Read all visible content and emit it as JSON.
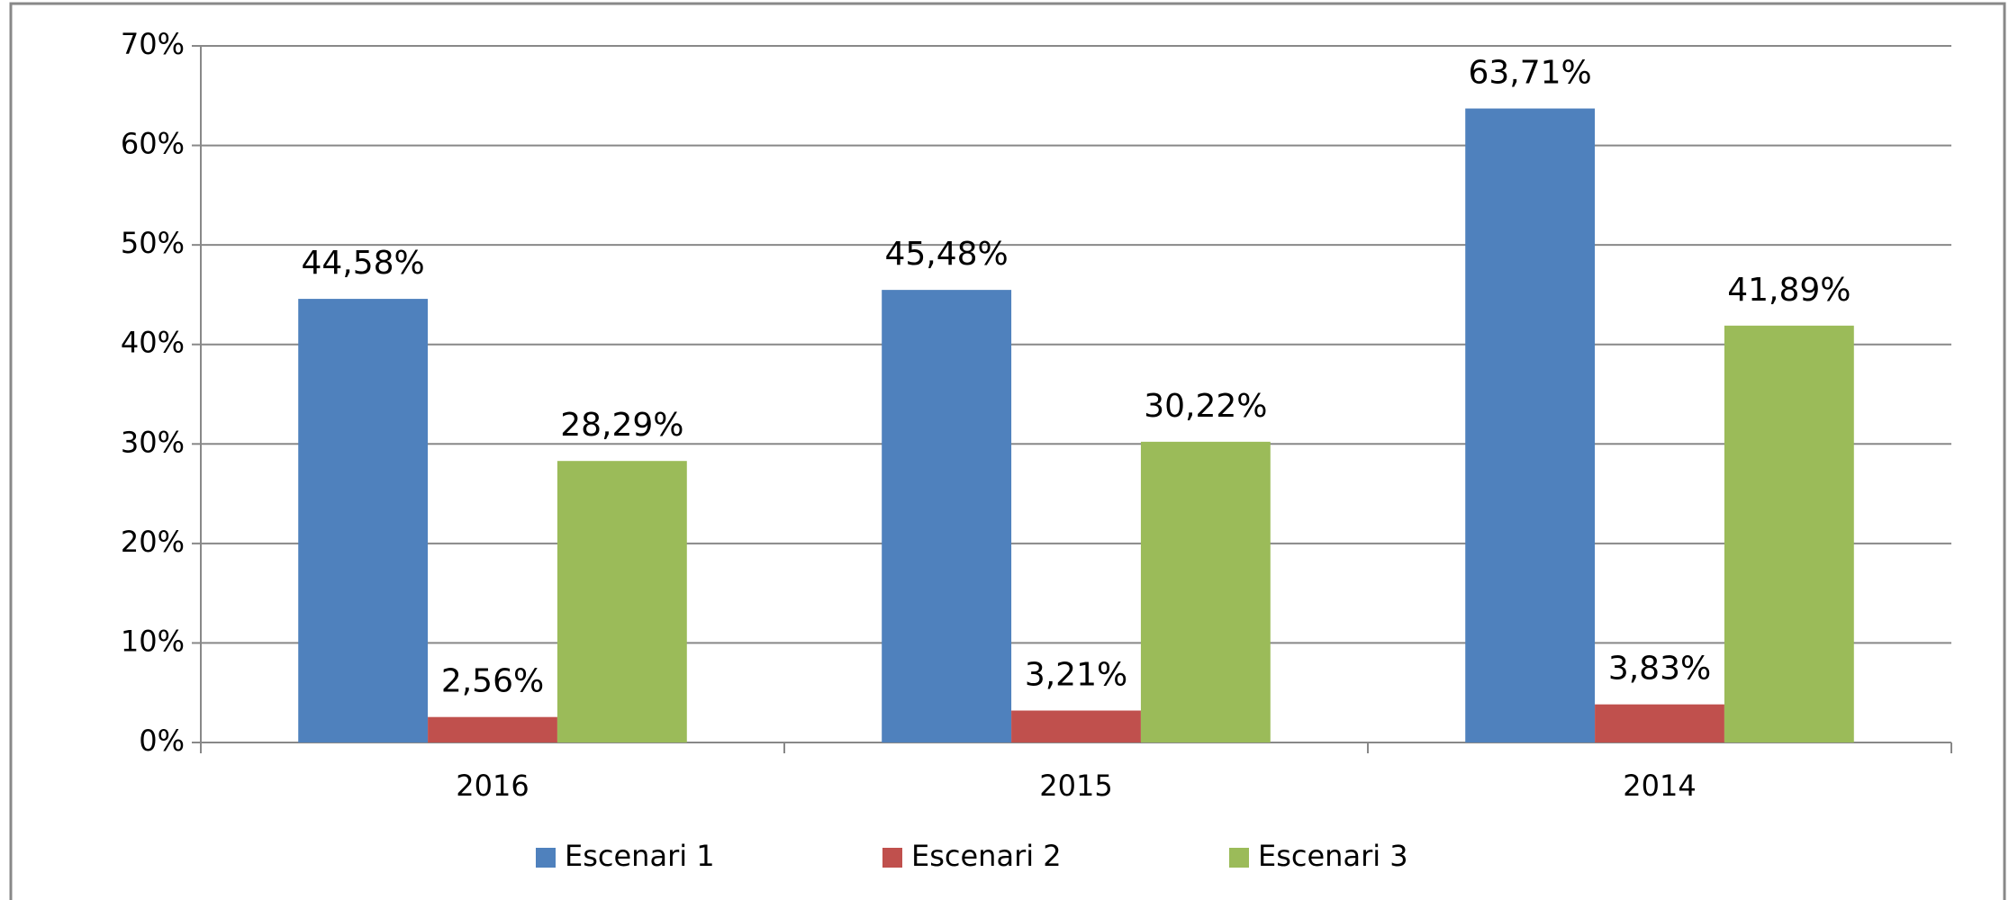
{
  "chart_data": {
    "type": "bar",
    "categories": [
      "2016",
      "2015",
      "2014"
    ],
    "series": [
      {
        "name": "Escenari 1",
        "color": "#4f81bd",
        "values": [
          44.58,
          45.48,
          63.71
        ],
        "value_labels": [
          "44,58%",
          "45,48%",
          "63,71%"
        ]
      },
      {
        "name": "Escenari 2",
        "color": "#c0504d",
        "values": [
          2.56,
          3.21,
          3.83
        ],
        "value_labels": [
          "2,56%",
          "3,21%",
          "3,83%"
        ]
      },
      {
        "name": "Escenari 3",
        "color": "#9bbb59",
        "values": [
          28.29,
          30.22,
          41.89
        ],
        "value_labels": [
          "28,29%",
          "30,22%",
          "41,89%"
        ]
      }
    ],
    "ylim": [
      0,
      70
    ],
    "yticks": [
      {
        "value": 0,
        "label": "0%"
      },
      {
        "value": 10,
        "label": "10%"
      },
      {
        "value": 20,
        "label": "20%"
      },
      {
        "value": 30,
        "label": "30%"
      },
      {
        "value": 40,
        "label": "40%"
      },
      {
        "value": 50,
        "label": "50%"
      },
      {
        "value": 60,
        "label": "60%"
      },
      {
        "value": 70,
        "label": "70%"
      }
    ],
    "grid": true,
    "legend": "bottom"
  }
}
